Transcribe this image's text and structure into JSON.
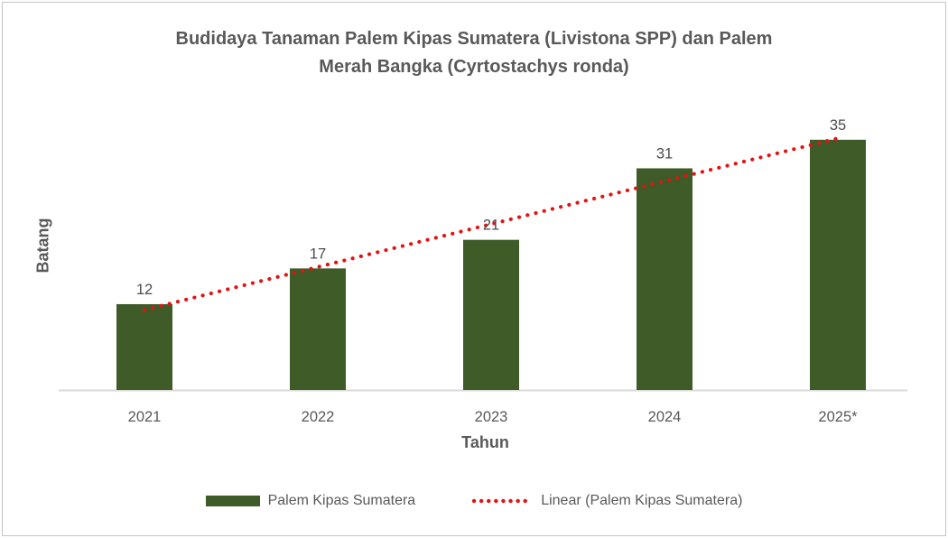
{
  "window": {
    "background": "#ffffff",
    "border_color": "#c6c6c6"
  },
  "chart_data": {
    "type": "bar",
    "title": "Budidaya Tanaman Palem Kipas Sumatera (Livistona SPP) dan Palem Merah Bangka (Cyrtostachys ronda)",
    "title_lines": [
      "Budidaya Tanaman Palem Kipas Sumatera (Livistona SPP) dan Palem",
      "Merah Bangka (Cyrtostachys ronda)"
    ],
    "categories": [
      "2021",
      "2022",
      "2023",
      "2024",
      "2025*"
    ],
    "series": [
      {
        "name": "Palem Kipas Sumatera",
        "type": "bar",
        "values": [
          12,
          17,
          21,
          31,
          35
        ],
        "color": "#3E5B28"
      }
    ],
    "trendline": {
      "name": "Linear (Palem Kipas Sumatera)",
      "fit": "linear",
      "style": "dotted",
      "color": "#E11414"
    },
    "data_labels": [
      12,
      17,
      21,
      31,
      35
    ],
    "xlabel": "Tahun",
    "ylabel": "Batang",
    "ylim": [
      0,
      40
    ],
    "grid": false,
    "y_axis_ticks_visible": false,
    "legend_position": "bottom",
    "legend": [
      "Palem Kipas Sumatera",
      "Linear (Palem Kipas Sumatera)"
    ],
    "colors": {
      "bar": "#3E5B28",
      "trendline": "#E11414",
      "axis_line": "#D9D9D9",
      "title_text": "#595959",
      "tick_text": "#595959",
      "data_label_text": "#4d4d4d"
    }
  }
}
